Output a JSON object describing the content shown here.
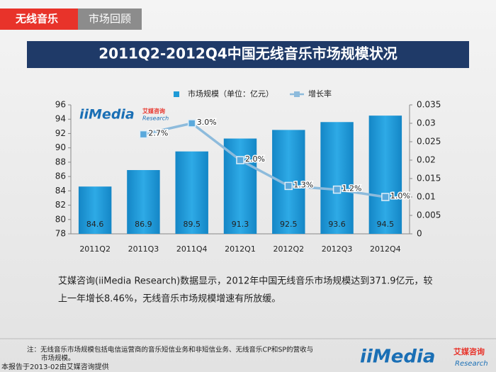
{
  "header": {
    "tag": "无线音乐",
    "section": "市场回顾"
  },
  "chart_data": {
    "type": "bar_line",
    "title": "2011Q2-2012Q4中国无线音乐市场规模状况",
    "categories": [
      "2011Q2",
      "2011Q3",
      "2011Q4",
      "2012Q1",
      "2012Q2",
      "2012Q3",
      "2012Q4"
    ],
    "series": [
      {
        "name": "市场规模（单位：亿元）",
        "color": "#1e9ad6",
        "type": "bar",
        "values": [
          84.6,
          86.9,
          89.5,
          91.3,
          92.5,
          93.6,
          94.5
        ]
      },
      {
        "name": "增长率",
        "color": "#8dbbdc",
        "type": "line",
        "axis": "y2",
        "values": [
          null,
          0.027,
          0.03,
          0.02,
          0.013,
          0.012,
          0.01
        ],
        "value_labels": [
          null,
          "2.7%",
          "3.0%",
          "2.0%",
          "1.3%",
          "1.2%",
          "1.0%"
        ]
      }
    ],
    "ylim": [
      78,
      96
    ],
    "yticks": [
      78,
      80,
      82,
      84,
      86,
      88,
      90,
      92,
      94,
      96
    ],
    "y2lim": [
      0,
      0.035
    ],
    "y2ticks": [
      0,
      0.005,
      0.01,
      0.015,
      0.02,
      0.025,
      0.03,
      0.035
    ],
    "grid": false,
    "legend": "top"
  },
  "logo": {
    "brand": "iiMedia",
    "cn": "艾媒咨询",
    "en": "Research"
  },
  "description": [
    "艾媒咨询(iiMedia Research)数据显示，2012年中国无线音乐市场规模达到371.9亿元，较",
    "上一年增长8.46%，无线音乐市场规模增速有所放缓。"
  ],
  "note": [
    "注：无线音乐市场规模包括电信运营商的音乐短信业务和非短信业务、无线音乐CP和SP的营收与",
    "市场规模。"
  ],
  "footer": "本报告于2013-02由艾媒咨询提供"
}
